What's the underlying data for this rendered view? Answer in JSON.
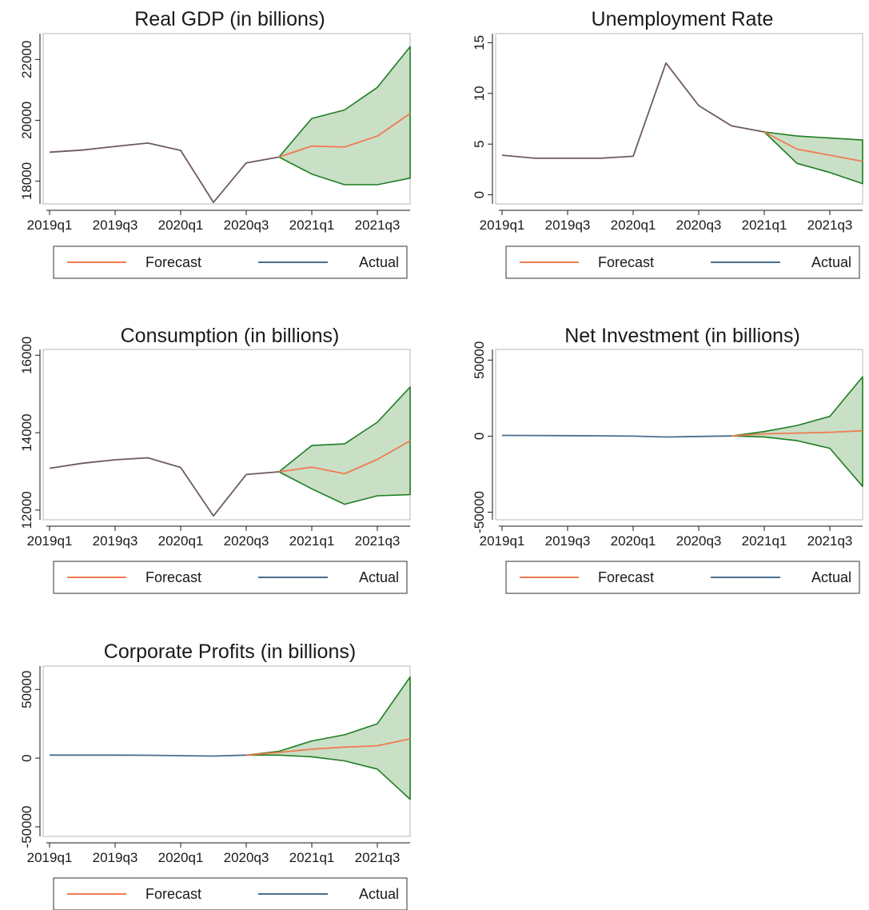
{
  "colors": {
    "forecast": "#f07b51",
    "actual": "#4a6d8c",
    "actual_overlap": "#6e5a64",
    "band_fill": "#c9dfc6",
    "band_edge": "#1e7d22",
    "axis": "#1a1a1a",
    "legend_border": "#555555"
  },
  "legend": {
    "forecast_label": "Forecast",
    "actual_label": "Actual"
  },
  "chart_data": [
    {
      "type": "line",
      "title": "Real GDP (in billions)",
      "x": [
        "2019q1",
        "2019q2",
        "2019q3",
        "2019q4",
        "2020q1",
        "2020q2",
        "2020q3",
        "2020q4",
        "2021q1",
        "2021q2",
        "2021q3",
        "2021q4"
      ],
      "x_tick_labels": [
        "2019q1",
        "2019q3",
        "2020q1",
        "2020q3",
        "2021q1",
        "2021q3"
      ],
      "y_ticks": [
        18000,
        20000,
        22000
      ],
      "y_tick_labels": [
        "18000",
        "20000",
        "22000"
      ],
      "ylim": [
        17250,
        22850
      ],
      "grid": false,
      "legend_position": "bottom",
      "series": [
        {
          "name": "Actual",
          "values": [
            18950,
            19020,
            19140,
            19250,
            19010,
            17300,
            18600,
            18790,
            null,
            null,
            null,
            null
          ]
        },
        {
          "name": "Forecast",
          "values": [
            null,
            null,
            null,
            null,
            null,
            null,
            null,
            18790,
            19150,
            19120,
            19480,
            20220
          ]
        }
      ],
      "band": {
        "lower": [
          null,
          null,
          null,
          null,
          null,
          null,
          null,
          18790,
          18230,
          17880,
          17880,
          18100
        ],
        "upper": [
          null,
          null,
          null,
          null,
          null,
          null,
          null,
          18790,
          20060,
          20340,
          21080,
          22420
        ]
      }
    },
    {
      "type": "line",
      "title": "Unemployment Rate",
      "x": [
        "2019q1",
        "2019q2",
        "2019q3",
        "2019q4",
        "2020q1",
        "2020q2",
        "2020q3",
        "2020q4",
        "2021q1",
        "2021q2",
        "2021q3",
        "2021q4"
      ],
      "x_tick_labels": [
        "2019q1",
        "2019q3",
        "2020q1",
        "2020q3",
        "2021q1",
        "2021q3"
      ],
      "y_ticks": [
        0,
        5,
        10,
        15
      ],
      "y_tick_labels": [
        "0",
        "5",
        "10",
        "15"
      ],
      "ylim": [
        -0.9,
        15.9
      ],
      "grid": false,
      "legend_position": "bottom",
      "series": [
        {
          "name": "Actual",
          "values": [
            3.9,
            3.6,
            3.6,
            3.6,
            3.8,
            13.0,
            8.8,
            6.8,
            6.2,
            null,
            null,
            null
          ]
        },
        {
          "name": "Forecast",
          "values": [
            null,
            null,
            null,
            null,
            null,
            null,
            null,
            null,
            6.2,
            4.5,
            3.9,
            3.3
          ]
        }
      ],
      "band": {
        "lower": [
          null,
          null,
          null,
          null,
          null,
          null,
          null,
          null,
          6.2,
          3.1,
          2.2,
          1.1
        ],
        "upper": [
          null,
          null,
          null,
          null,
          null,
          null,
          null,
          null,
          6.2,
          5.8,
          5.6,
          5.4
        ]
      }
    },
    {
      "type": "line",
      "title": "Consumption (in billions)",
      "x": [
        "2019q1",
        "2019q2",
        "2019q3",
        "2019q4",
        "2020q1",
        "2020q2",
        "2020q3",
        "2020q4",
        "2021q1",
        "2021q2",
        "2021q3",
        "2021q4"
      ],
      "x_tick_labels": [
        "2019q1",
        "2019q3",
        "2020q1",
        "2020q3",
        "2021q1",
        "2021q3"
      ],
      "y_ticks": [
        12000,
        14000,
        16000
      ],
      "y_tick_labels": [
        "12000",
        "14000",
        "16000"
      ],
      "ylim": [
        11750,
        16150
      ],
      "grid": false,
      "legend_position": "bottom",
      "series": [
        {
          "name": "Actual",
          "values": [
            13080,
            13210,
            13300,
            13350,
            13100,
            11850,
            12920,
            12990,
            null,
            null,
            null,
            null
          ]
        },
        {
          "name": "Forecast",
          "values": [
            null,
            null,
            null,
            null,
            null,
            null,
            null,
            12990,
            13110,
            12940,
            13310,
            13790
          ]
        }
      ],
      "band": {
        "lower": [
          null,
          null,
          null,
          null,
          null,
          null,
          null,
          12990,
          12550,
          12150,
          12370,
          12400
        ],
        "upper": [
          null,
          null,
          null,
          null,
          null,
          null,
          null,
          12990,
          13670,
          13710,
          14270,
          15180
        ]
      }
    },
    {
      "type": "line",
      "title": "Net Investment (in billions)",
      "x": [
        "2019q1",
        "2019q2",
        "2019q3",
        "2019q4",
        "2020q1",
        "2020q2",
        "2020q3",
        "2020q4",
        "2021q1",
        "2021q2",
        "2021q3",
        "2021q4"
      ],
      "x_tick_labels": [
        "2019q1",
        "2019q3",
        "2020q1",
        "2020q3",
        "2021q1",
        "2021q3"
      ],
      "y_ticks": [
        -50000,
        0,
        50000
      ],
      "y_tick_labels": [
        "-50000",
        "0",
        "50000"
      ],
      "ylim": [
        -55000,
        57000
      ],
      "grid": false,
      "legend_position": "bottom",
      "series": [
        {
          "name": "Actual",
          "values": [
            500,
            400,
            300,
            200,
            0,
            -600,
            -200,
            100,
            null,
            null,
            null,
            null
          ]
        },
        {
          "name": "Forecast",
          "values": [
            null,
            null,
            null,
            null,
            null,
            null,
            null,
            100,
            1500,
            2000,
            2500,
            3500
          ]
        }
      ],
      "band": {
        "lower": [
          null,
          null,
          null,
          null,
          null,
          null,
          null,
          100,
          -500,
          -3000,
          -8000,
          -33000
        ],
        "upper": [
          null,
          null,
          null,
          null,
          null,
          null,
          null,
          100,
          3000,
          7000,
          13000,
          39000
        ]
      }
    },
    {
      "type": "line",
      "title": "Corporate Profits (in billions)",
      "x": [
        "2019q1",
        "2019q2",
        "2019q3",
        "2019q4",
        "2020q1",
        "2020q2",
        "2020q3",
        "2020q4",
        "2021q1",
        "2021q2",
        "2021q3",
        "2021q4"
      ],
      "x_tick_labels": [
        "2019q1",
        "2019q3",
        "2020q1",
        "2020q3",
        "2021q1",
        "2021q3"
      ],
      "y_ticks": [
        -50000,
        0,
        50000
      ],
      "y_tick_labels": [
        "-50000",
        "0",
        "50000"
      ],
      "ylim": [
        -57000,
        67000
      ],
      "grid": false,
      "legend_position": "bottom",
      "series": [
        {
          "name": "Actual",
          "values": [
            2200,
            2200,
            2200,
            2100,
            1800,
            1500,
            2200,
            null,
            null,
            null,
            null,
            null
          ]
        },
        {
          "name": "Forecast",
          "values": [
            null,
            null,
            null,
            null,
            null,
            null,
            2200,
            4200,
            6500,
            8000,
            9000,
            14000
          ]
        }
      ],
      "band": {
        "lower": [
          null,
          null,
          null,
          null,
          null,
          null,
          2200,
          2200,
          1000,
          -2000,
          -8000,
          -30000
        ],
        "upper": [
          null,
          null,
          null,
          null,
          null,
          null,
          2200,
          5000,
          12500,
          17000,
          25000,
          59000
        ]
      }
    }
  ]
}
